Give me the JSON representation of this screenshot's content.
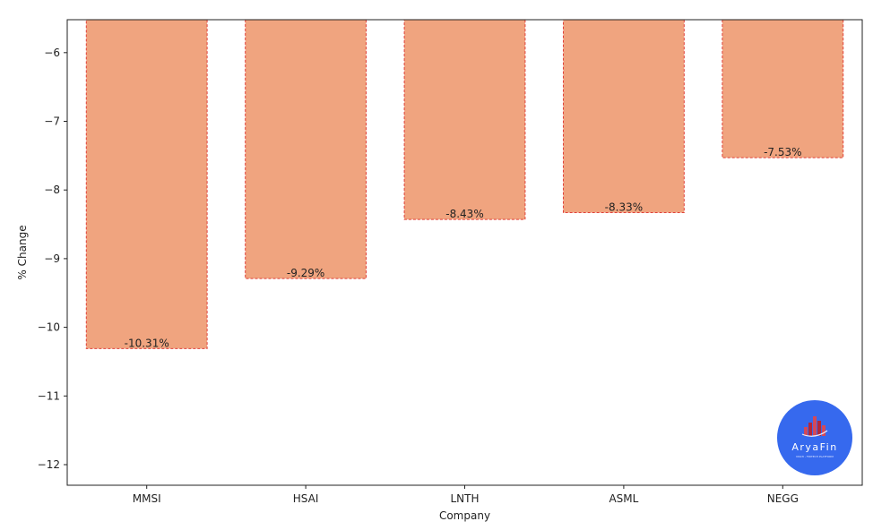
{
  "chart_data": {
    "type": "bar",
    "categories": [
      "MMSI",
      "HSAI",
      "LNTH",
      "ASML",
      "NEGG"
    ],
    "values": [
      -10.31,
      -9.29,
      -8.43,
      -8.33,
      -7.53
    ],
    "data_labels": [
      "-10.31%",
      "-9.29%",
      "-8.43%",
      "-8.33%",
      "-7.53%"
    ],
    "title": "",
    "xlabel": "Company",
    "ylabel": "% Change",
    "ylim": [
      -12.3,
      -5.52
    ],
    "yticks": [
      -6,
      -7,
      -8,
      -9,
      -10,
      -11,
      -12
    ],
    "ytick_labels": [
      "−6",
      "−7",
      "−8",
      "−9",
      "−10",
      "−11",
      "−12"
    ],
    "grid": false,
    "legend": "none",
    "colors": {
      "bar_fill": "#f0a47f",
      "bar_edge": "#e0413a"
    }
  },
  "logo": {
    "name": "AryaFin",
    "tagline": "MULTI - FINTECH PLATFORM",
    "background_color": "#3669ee",
    "icon": "building-bars-icon"
  }
}
